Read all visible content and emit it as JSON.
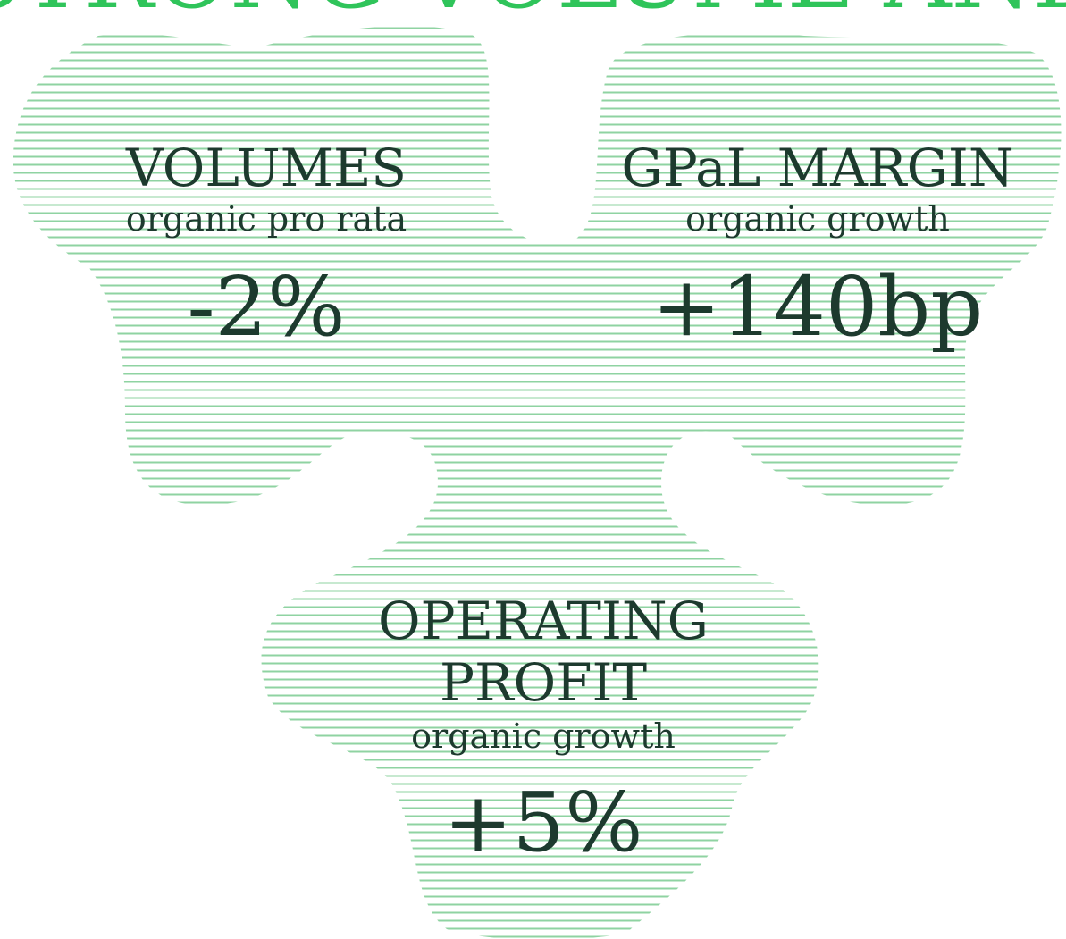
{
  "header": {
    "title": "STRONG VOLUME AND"
  },
  "metrics": [
    {
      "title_lines": [
        "VOLUMES"
      ],
      "subtitle": "organic pro rata",
      "value": "-2%"
    },
    {
      "title_lines": [
        "GPaL MARGIN"
      ],
      "subtitle": "organic growth",
      "value": "+140bp"
    },
    {
      "title_lines": [
        "OPERATING",
        "PROFIT"
      ],
      "subtitle": "organic growth",
      "value": "+5%"
    }
  ]
}
